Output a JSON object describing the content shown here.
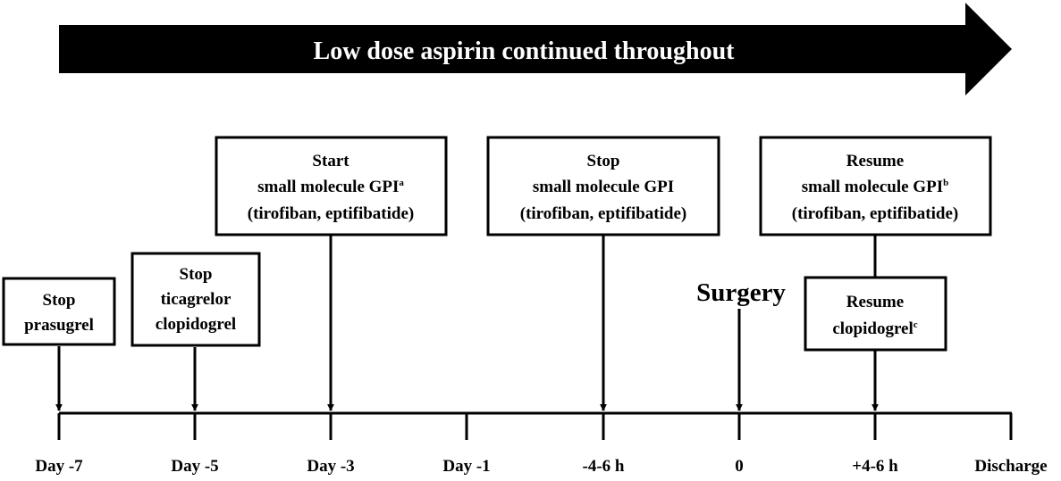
{
  "banner": {
    "text": "Low dose aspirin continued throughout",
    "fill_color": "#000000",
    "text_color": "#ffffff"
  },
  "timeline": {
    "ticks": [
      {
        "label": "Day -7"
      },
      {
        "label": "Day -5"
      },
      {
        "label": "Day -3"
      },
      {
        "label": "Day -1"
      },
      {
        "label": "-4-6 h"
      },
      {
        "label": "0"
      },
      {
        "label": "+4-6 h"
      },
      {
        "label": "Discharge"
      }
    ]
  },
  "events": {
    "stop_prasugrel": {
      "lines": [
        "Stop",
        "prasugrel"
      ]
    },
    "stop_ticagrelor_clopidogrel": {
      "lines": [
        "Stop",
        "ticagrelor",
        "clopidogrel"
      ]
    },
    "start_gpi": {
      "line1": "Start",
      "line2": "small molecule GPI",
      "sup": "a",
      "line3": "(tirofiban, eptifibatide)"
    },
    "stop_gpi": {
      "line1": "Stop",
      "line2": "small molecule GPI",
      "line3": "(tirofiban, eptifibatide)"
    },
    "resume_gpi": {
      "line1": "Resume",
      "line2": "small molecule GPI",
      "sup": "b",
      "line3": "(tirofiban, eptifibatide)"
    },
    "resume_clopidogrel": {
      "line1": "Resume",
      "line2": "clopidogrel",
      "sup": "c"
    },
    "surgery": {
      "label": "Surgery"
    }
  }
}
